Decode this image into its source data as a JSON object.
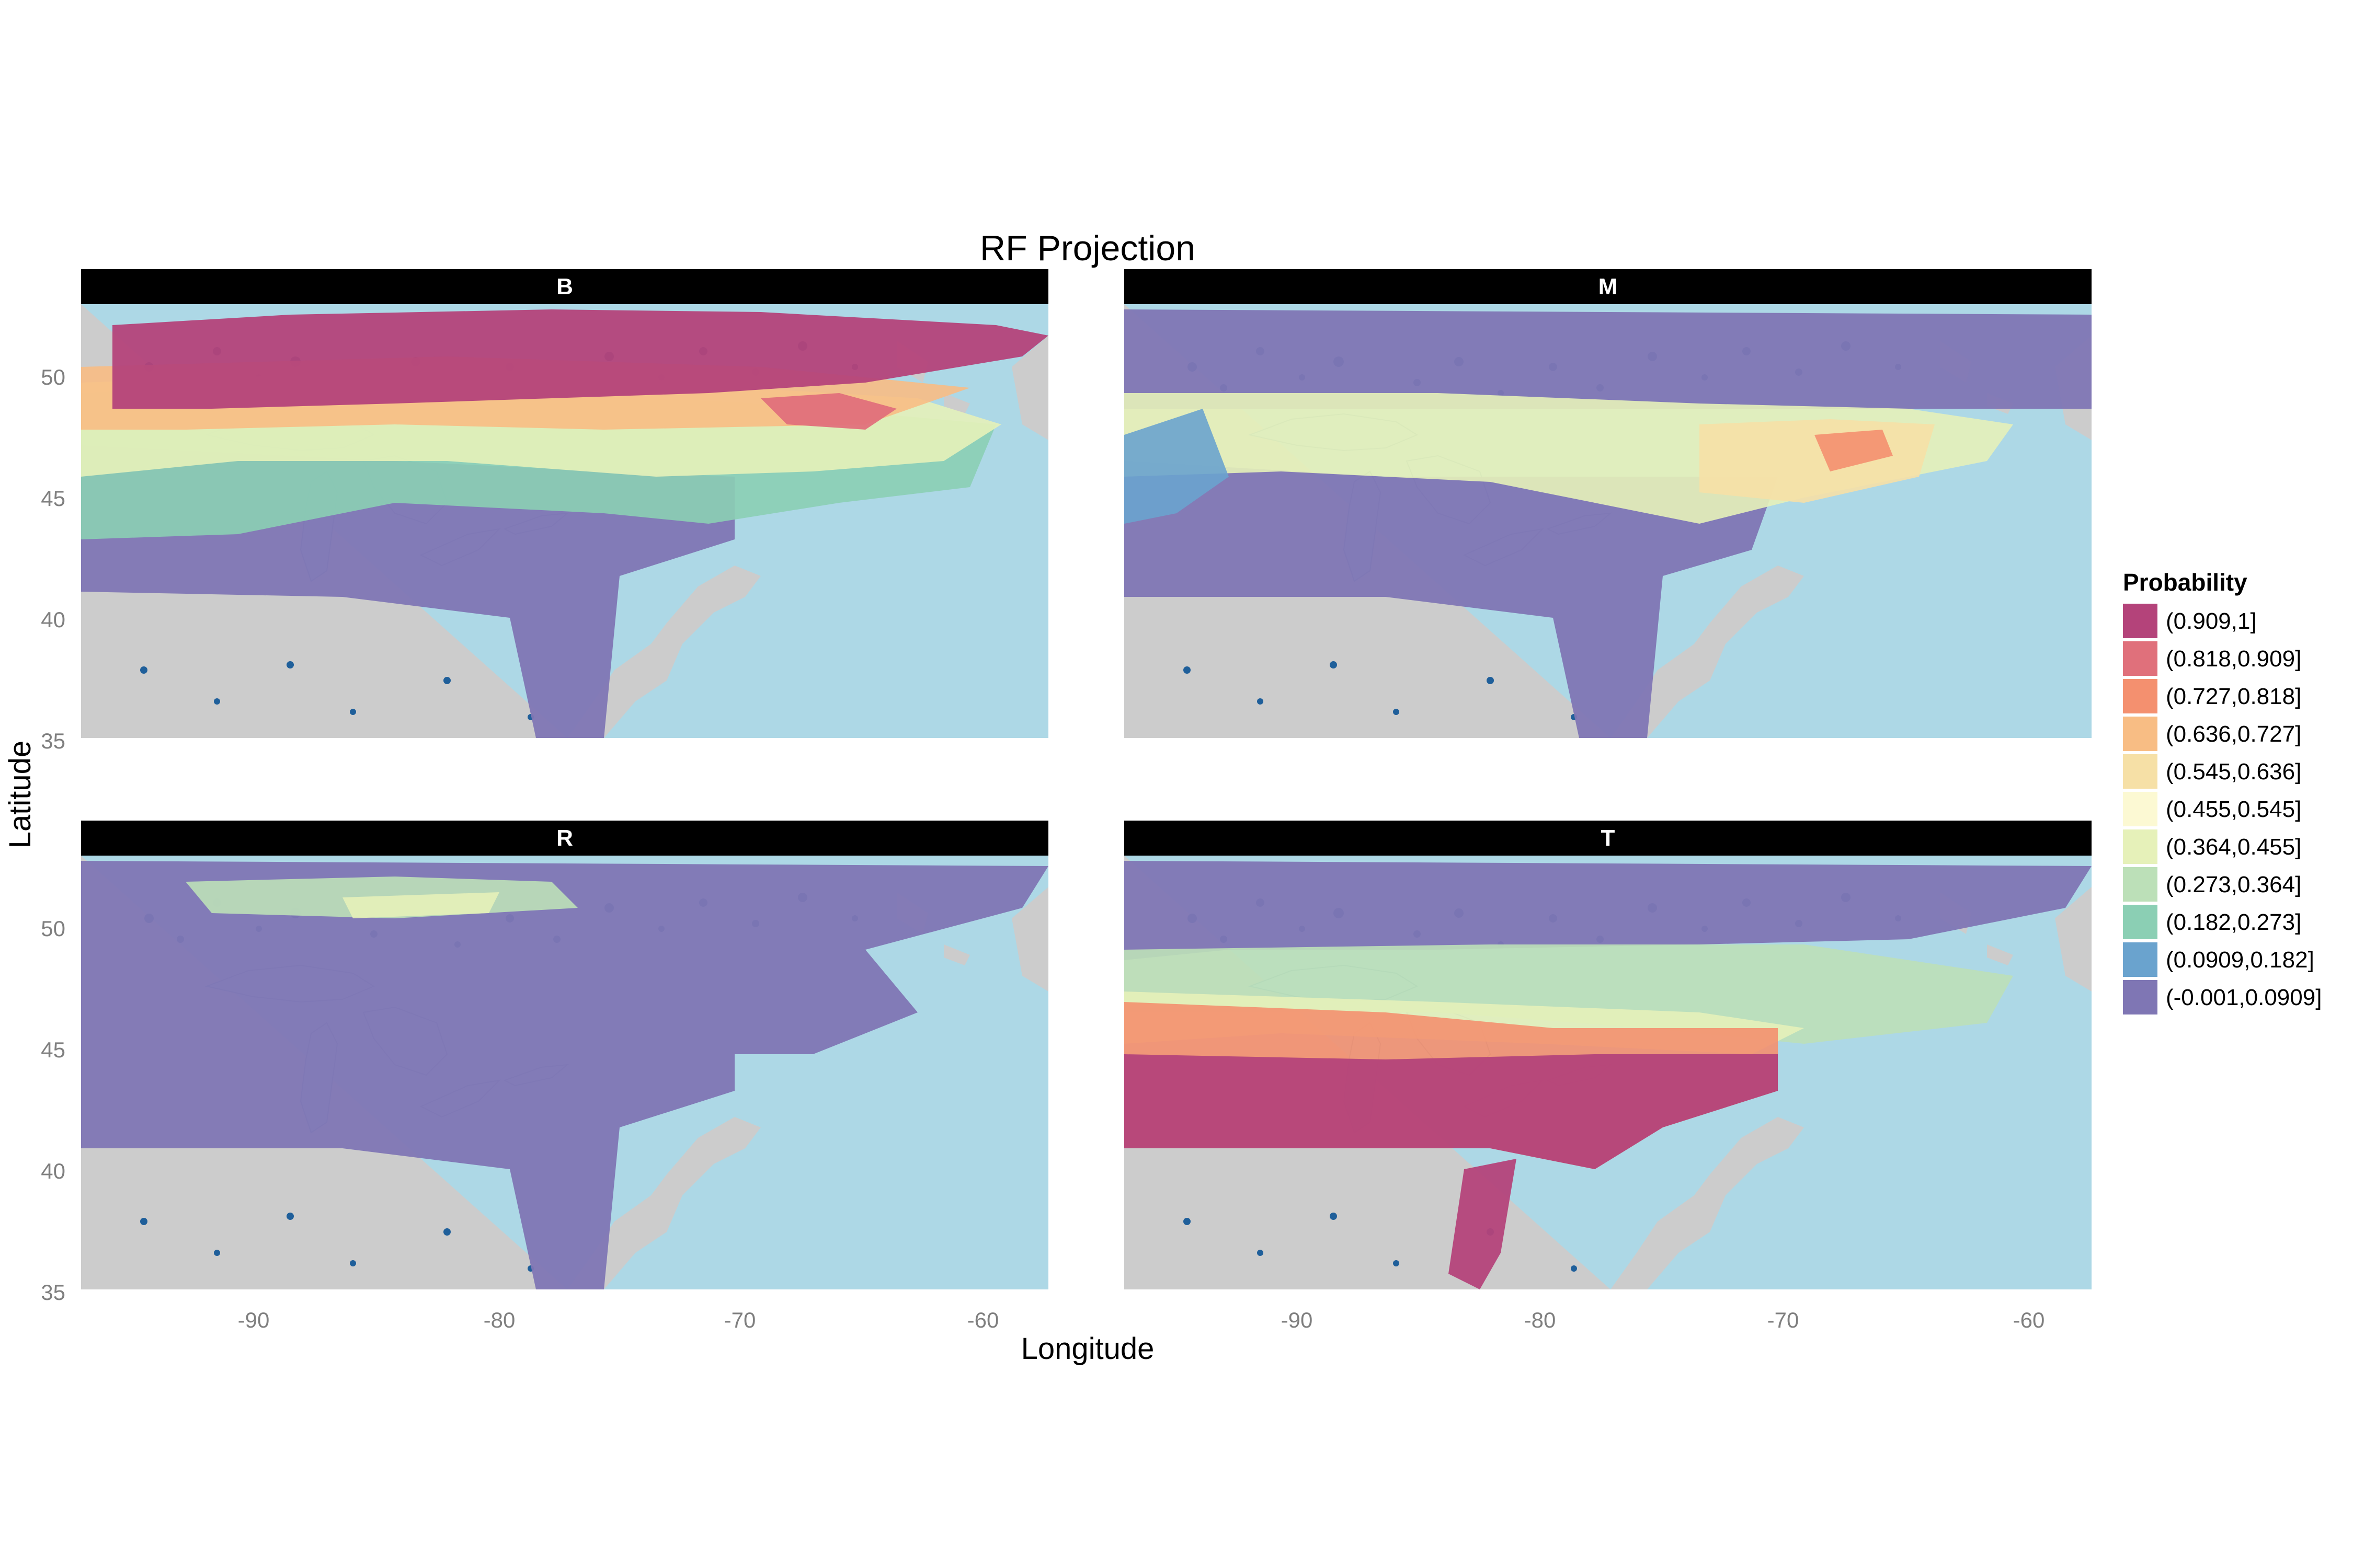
{
  "title": "RF Projection",
  "x_axis": {
    "label": "Longitude",
    "ticks": [
      "-90",
      "-80",
      "-70",
      "-60"
    ]
  },
  "y_axis": {
    "label": "Latitude",
    "ticks": [
      "35",
      "40",
      "45",
      "50"
    ]
  },
  "legend": {
    "title": "Probability",
    "placement": "right",
    "items": [
      {
        "label": "(0.909,1]",
        "color": "#b4437a"
      },
      {
        "label": "(0.818,0.909]",
        "color": "#e0707b"
      },
      {
        "label": "(0.727,0.818]",
        "color": "#f4906f"
      },
      {
        "label": "(0.636,0.727]",
        "color": "#f8bd84"
      },
      {
        "label": "(0.545,0.636]",
        "color": "#f6e0a6"
      },
      {
        "label": "(0.455,0.545]",
        "color": "#fcf9d3"
      },
      {
        "label": "(0.364,0.455]",
        "color": "#e6f1b9"
      },
      {
        "label": "(0.273,0.364]",
        "color": "#bce0b8"
      },
      {
        "label": "(0.182,0.273]",
        "color": "#8bcfb4"
      },
      {
        "label": "(0.0909,0.182]",
        "color": "#6aa3ce"
      },
      {
        "label": "(-0.001,0.0909]",
        "color": "#7f76b4"
      }
    ]
  },
  "colors": {
    "ocean": "#add8e6",
    "land": "#cccccc",
    "strip": "#000000",
    "rivers": "#1f5f9a"
  },
  "panels": [
    {
      "id": "B",
      "label": "B"
    },
    {
      "id": "M",
      "label": "M"
    },
    {
      "id": "R",
      "label": "R"
    },
    {
      "id": "T",
      "label": "T"
    }
  ],
  "chart_data": {
    "type": "heatmap",
    "title": "RF Projection",
    "xlabel": "Longitude",
    "ylabel": "Latitude",
    "xlim": [
      -97,
      -57.5
    ],
    "ylim": [
      35,
      53
    ],
    "x_ticks": [
      -90,
      -80,
      -70,
      -60
    ],
    "y_ticks": [
      35,
      40,
      45,
      50
    ],
    "facets": [
      {
        "panel": "B",
        "summary": "highest (0.909,1] across northern band ~48-53N; mid values 45-48N; lowest (-0.001,0.0909] south of ~45N"
      },
      {
        "panel": "M",
        "summary": "low (-0.001,0.0909] in north and south; mid values (0.455,0.818] in band ~44-48N, peaking in the Maritimes"
      },
      {
        "panel": "R",
        "summary": "nearly all (-0.001,0.0909]; slight (0.0909,0.364] along ~51N"
      },
      {
        "panel": "T",
        "summary": "highest (0.909,1] south of ~45N; mid values ~45-48N; lowest in the north"
      }
    ]
  }
}
